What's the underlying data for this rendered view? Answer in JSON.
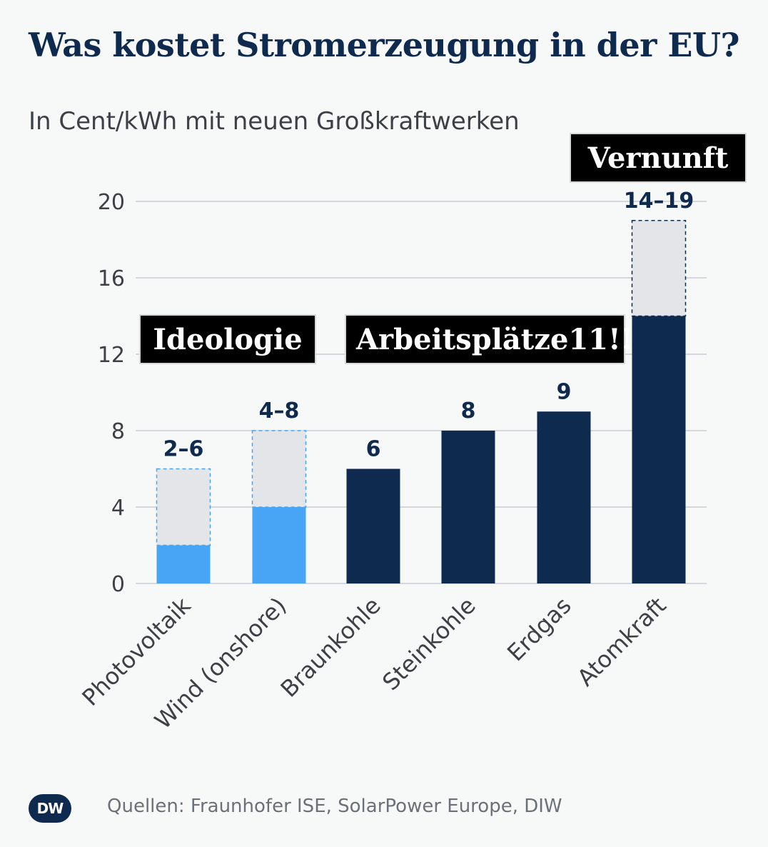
{
  "title": "Was kostet Stromerzeugung in der EU?",
  "subtitle": "In Cent/kWh mit neuen Großkraftwerken",
  "annotations": {
    "ideologie": "Ideologie",
    "arbeitsplaetze": "Arbeitsplätze11!!",
    "vernunft": "Vernunft"
  },
  "footer": {
    "logo": "DW",
    "source": "Quellen: Fraunhofer ISE, SolarPower Europe, DIW"
  },
  "colors": {
    "renewable": "#48a5f5",
    "conventional": "#0f2a4f",
    "range": "#e3e5e8",
    "grid": "#c8cdd2"
  },
  "chart_data": {
    "type": "bar",
    "categories": [
      "Photovoltaik",
      "Wind (onshore)",
      "Braunkohle",
      "Steinkohle",
      "Erdgas",
      "Atomkraft"
    ],
    "low": [
      2,
      4,
      6,
      8,
      9,
      14
    ],
    "high": [
      6,
      8,
      6,
      8,
      9,
      19
    ],
    "value_labels": [
      "2–6",
      "4–8",
      "6",
      "8",
      "9",
      "14–19"
    ],
    "kind": [
      "renewable",
      "renewable",
      "conventional",
      "conventional",
      "conventional",
      "conventional"
    ],
    "yticks": [
      0,
      4,
      8,
      12,
      16,
      20
    ],
    "ylim": [
      0,
      20
    ],
    "grid": true
  }
}
